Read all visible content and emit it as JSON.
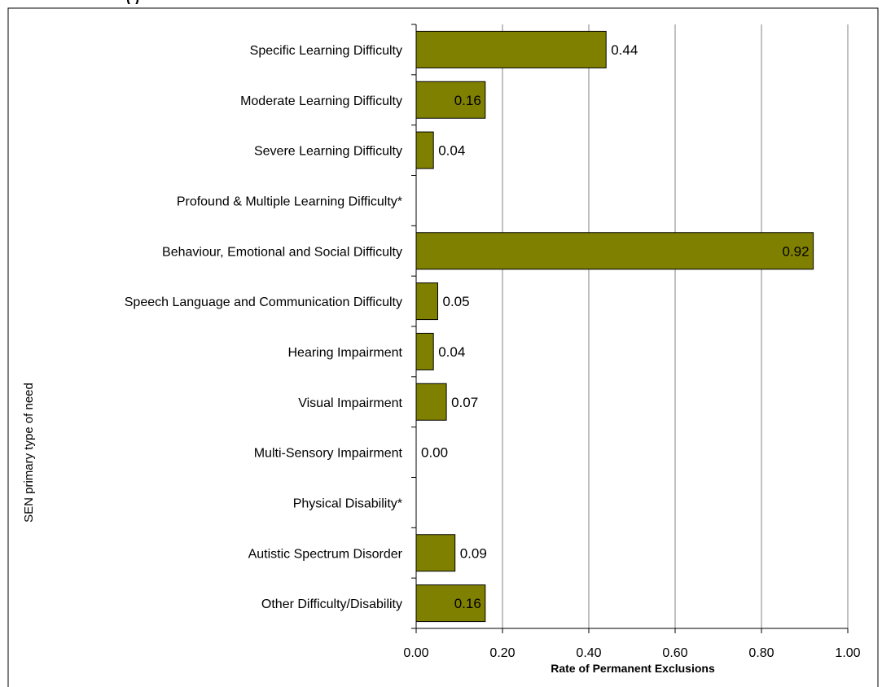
{
  "title_fragment": "(       )",
  "chart_data": {
    "type": "bar",
    "orientation": "horizontal",
    "categories": [
      "Specific Learning Difficulty",
      "Moderate Learning Difficulty",
      "Severe Learning Difficulty",
      "Profound & Multiple Learning Difficulty*",
      "Behaviour, Emotional and Social Difficulty",
      "Speech Language and Communication Difficulty",
      "Hearing Impairment",
      "Visual Impairment",
      "Multi-Sensory Impairment",
      "Physical Disability*",
      "Autistic Spectrum Disorder",
      "Other Difficulty/Disability"
    ],
    "values": [
      0.44,
      0.16,
      0.04,
      null,
      0.92,
      0.05,
      0.04,
      0.07,
      0.0,
      null,
      0.09,
      0.16
    ],
    "data_labels": [
      "0.44",
      "0.16",
      "0.04",
      "",
      "0.92",
      "0.05",
      "0.04",
      "0.07",
      "0.00",
      "",
      "0.09",
      "0.16"
    ],
    "label_inside": [
      false,
      true,
      false,
      false,
      true,
      false,
      false,
      false,
      false,
      false,
      false,
      true
    ],
    "xlabel": "Rate of Permanent Exclusions",
    "ylabel": "SEN primary type of need",
    "xlim": [
      0,
      1.0
    ],
    "xticks": [
      0,
      0.2,
      0.4,
      0.6,
      0.8,
      1.0
    ],
    "xtick_labels": [
      "0.00",
      "0.20",
      "0.40",
      "0.60",
      "0.80",
      "1.00"
    ],
    "grid": "vertical",
    "legend": "none",
    "colors": {
      "bar_fill": "#808000",
      "bar_stroke": "#000000",
      "grid": "#808080",
      "axis": "#000000"
    }
  }
}
